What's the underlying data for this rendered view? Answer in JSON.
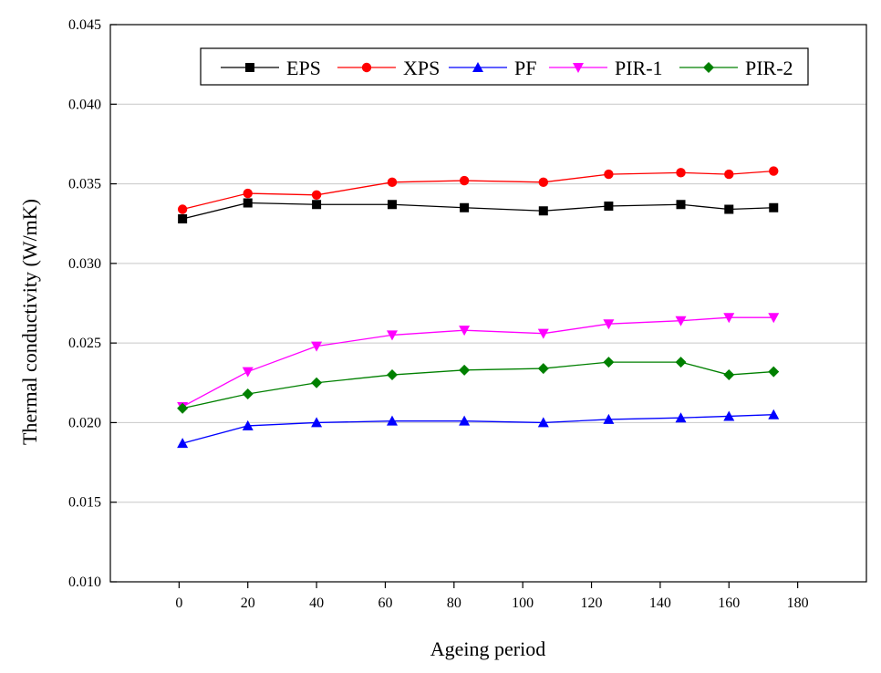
{
  "chart_data": {
    "type": "line",
    "title": "",
    "xlabel": "Ageing period",
    "ylabel": "Thermal conductivity (W/mK)",
    "xlim": [
      -20,
      200
    ],
    "ylim": [
      0.01,
      0.045
    ],
    "grid": "horizontal",
    "legend_position": "top",
    "x_ticks": [
      0,
      20,
      40,
      60,
      80,
      100,
      120,
      140,
      160,
      180
    ],
    "x_tick_labels": [
      "0",
      "20",
      "40",
      "60",
      "80",
      "100",
      "120",
      "140",
      "160",
      "180"
    ],
    "y_ticks": [
      0.01,
      0.015,
      0.02,
      0.025,
      0.03,
      0.035,
      0.04,
      0.045
    ],
    "y_tick_labels": [
      "0.010",
      "0.015",
      "0.020",
      "0.025",
      "0.030",
      "0.035",
      "0.040",
      "0.045"
    ],
    "x": [
      1,
      20,
      40,
      62,
      83,
      106,
      125,
      146,
      160,
      173
    ],
    "series": [
      {
        "name": "EPS",
        "color": "#000000",
        "marker": "square",
        "values": [
          0.0328,
          0.0338,
          0.0337,
          0.0337,
          0.0335,
          0.0333,
          0.0336,
          0.0337,
          0.0334,
          0.0335
        ]
      },
      {
        "name": "XPS",
        "color": "#ff0000",
        "marker": "circle",
        "values": [
          0.0334,
          0.0344,
          0.0343,
          0.0351,
          0.0352,
          0.0351,
          0.0356,
          0.0357,
          0.0356,
          0.0358
        ]
      },
      {
        "name": "PF",
        "color": "#0000ff",
        "marker": "triangle-up",
        "values": [
          0.0187,
          0.0198,
          0.02,
          0.0201,
          0.0201,
          0.02,
          0.0202,
          0.0203,
          0.0204,
          0.0205
        ]
      },
      {
        "name": "PIR-1",
        "color": "#ff00ff",
        "marker": "triangle-down",
        "values": [
          0.021,
          0.0232,
          0.0248,
          0.0255,
          0.0258,
          0.0256,
          0.0262,
          0.0264,
          0.0266,
          0.0266
        ]
      },
      {
        "name": "PIR-2",
        "color": "#008000",
        "marker": "diamond",
        "values": [
          0.0209,
          0.0218,
          0.0225,
          0.023,
          0.0233,
          0.0234,
          0.0238,
          0.0238,
          0.023,
          0.0232
        ]
      }
    ]
  }
}
